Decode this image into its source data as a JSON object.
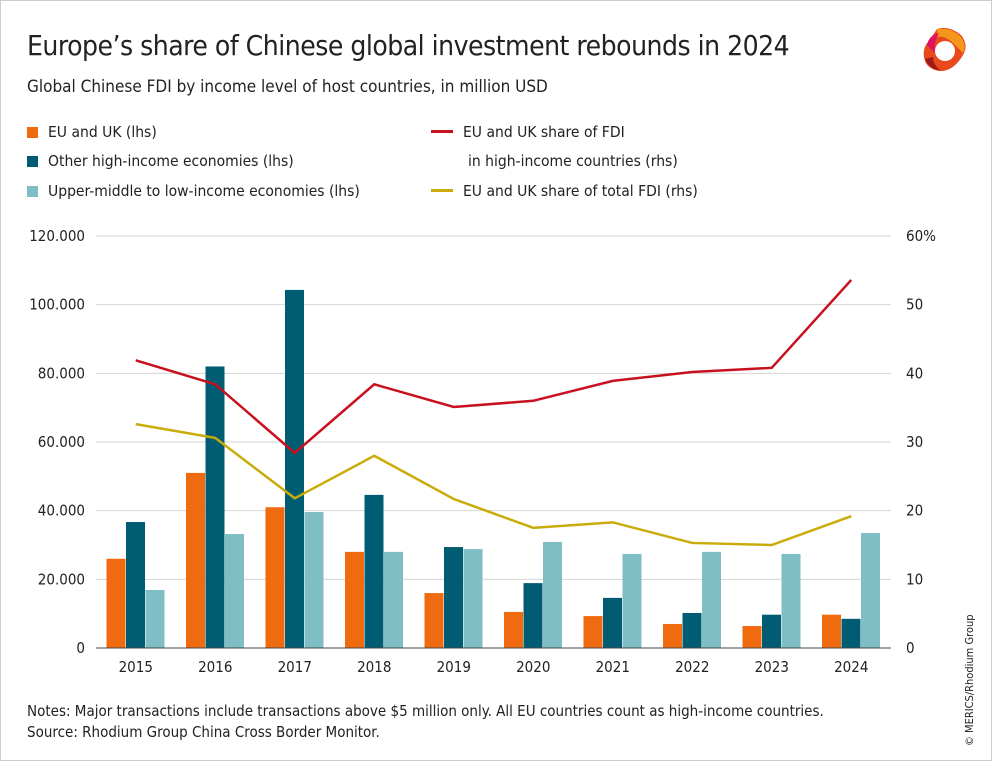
{
  "title": "Europe’s share of Chinese global investment rebounds in 2024",
  "subtitle": "Global Chinese FDI by income level of host countries, in million USD",
  "notes": "Notes: Major transactions include transactions above $5 million only. All EU countries count as high-income countries.",
  "source": "Source: Rhodium Group China Cross Border Monitor.",
  "credit": "© MERICS/Rhodium Group",
  "logo_icon": "merics-ribbon-logo",
  "chart_data": {
    "type": "bar",
    "categories": [
      "2015",
      "2016",
      "2017",
      "2018",
      "2019",
      "2020",
      "2021",
      "2022",
      "2023",
      "2024"
    ],
    "ylim_left": [
      0,
      120000
    ],
    "ylim_right": [
      0,
      60
    ],
    "left_ticks": [
      "0",
      "20.000",
      "40.000",
      "60.000",
      "80.000",
      "100.000",
      "120.000"
    ],
    "right_ticks": [
      "0",
      "10",
      "20",
      "30",
      "40",
      "50",
      "60%"
    ],
    "grid": true,
    "legend_position": "top",
    "series": [
      {
        "name": "EU and UK (lhs)",
        "kind": "bar",
        "axis": "left",
        "color": "#f06a0f",
        "values": [
          26000,
          51000,
          41000,
          28000,
          16000,
          10500,
          9300,
          7000,
          6400,
          9700
        ]
      },
      {
        "name": "Other high-income economies (lhs)",
        "kind": "bar",
        "axis": "left",
        "color": "#005c73",
        "values": [
          36700,
          82000,
          104300,
          44600,
          29400,
          18900,
          14600,
          10200,
          9700,
          8500
        ]
      },
      {
        "name": "Upper-middle to low-income economies (lhs)",
        "kind": "bar",
        "axis": "left",
        "color": "#80bec6",
        "values": [
          16900,
          33200,
          39600,
          28000,
          28800,
          30900,
          27400,
          28000,
          27400,
          33500
        ]
      },
      {
        "name": "EU and UK share of FDI",
        "name_line2": "in high-income countries (rhs)",
        "kind": "line",
        "axis": "right",
        "color": "#c8101e",
        "values": [
          41.9,
          38.4,
          28.4,
          38.4,
          35.1,
          36.0,
          38.9,
          40.2,
          40.8,
          53.6
        ]
      },
      {
        "name": "EU and UK share of total FDI (rhs)",
        "kind": "line",
        "axis": "right",
        "color": "#c9ac0a",
        "values": [
          32.6,
          30.6,
          21.8,
          28.0,
          21.7,
          17.5,
          18.3,
          15.3,
          15.0,
          19.2
        ]
      }
    ]
  }
}
